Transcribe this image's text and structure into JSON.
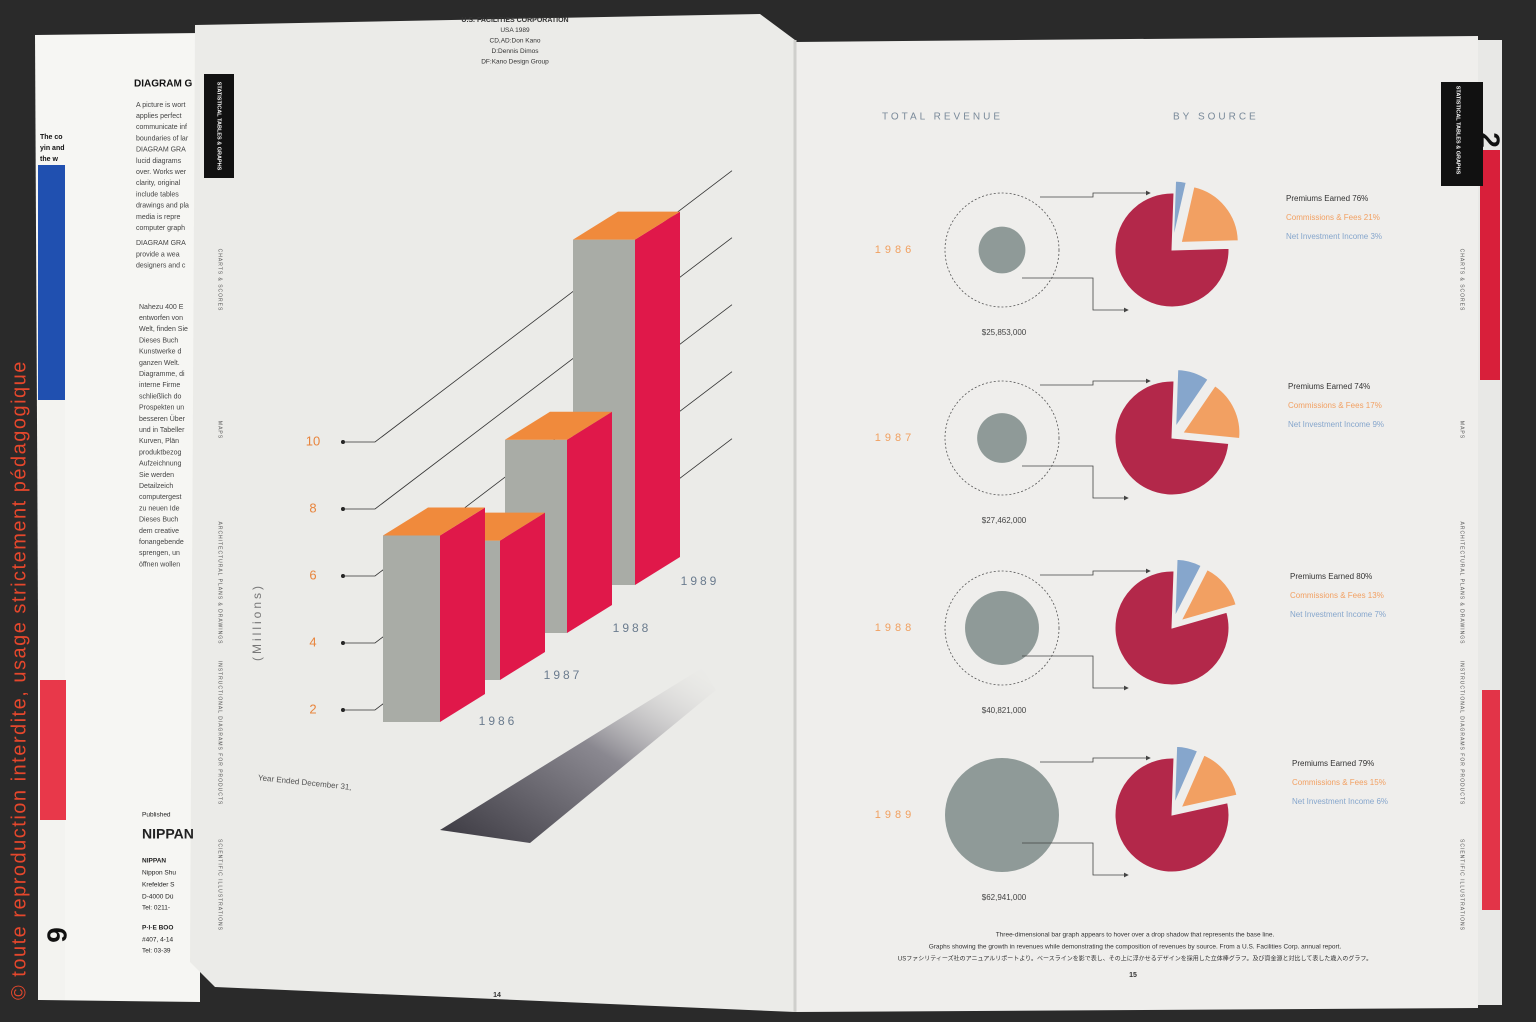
{
  "watermark": "© toute reproduction interdite, usage strictement pédagogique",
  "back_page": {
    "heading": "DIAGRAM G",
    "lines": [
      "A picture is wort",
      "applies perfect",
      "communicate inf",
      "boundaries of lar",
      "DIAGRAM GRA",
      "lucid diagrams",
      "over. Works wer",
      "clarity, original",
      "include tables",
      "drawings and pla",
      "media is repre",
      "computer graph",
      "DIAGRAM GRA",
      "provide a wea",
      "designers and c",
      "Nahezu 400 E",
      "entworfen von",
      "Welt, finden Sie",
      "Dieses Buch",
      "Kunstwerke d",
      "ganzen Welt.",
      "Diagramme, di",
      "interne Firme",
      "schließlich do",
      "Prospekten un",
      "besseren Über",
      "und in Tabeller",
      "Kurven, Plän",
      "produktbezog",
      "Aufzeichnung",
      "Sie werden",
      "Detailzeich",
      "computergest",
      "zu neuen Ide",
      "Dieses Buch",
      "dem creative",
      "fonangebende",
      "sprengen, un",
      "öffnen wollen"
    ],
    "side_lines": [
      "The co",
      "yin and",
      "the w"
    ],
    "footer": [
      "Published",
      "NIPPAN",
      "NIPPAN",
      "Nippon Shu",
      "Krefelder S",
      "D-4000 Dü",
      "Tel: 0211-",
      "P·I·E BOO",
      "#407, 4-14",
      "Tel: 03-39"
    ],
    "page_number": "6"
  },
  "left_page": {
    "credits": [
      "U.S. FACILITIES CORPORATION",
      "USA 1989",
      "CD,AD:Don Kano",
      "D:Dennis Dimos",
      "DF:Kano Design Group"
    ],
    "tab": "STATISTICAL TABLES & GRAPHS",
    "side_sections": [
      "CHARTS & SCORES",
      "MAPS",
      "ARCHITECTURAL PLANS & DRAWINGS",
      "INSTRUCTIONAL DIAGRAMS FOR PRODUCTS",
      "SCIENTIFIC ILLUSTRATIONS"
    ],
    "page_number": "14"
  },
  "bar_chart": {
    "type": "bar",
    "y_label": "(Millions)",
    "x_label": "Year Ended December 31,",
    "categories": [
      "1986",
      "1987",
      "1988",
      "1989"
    ],
    "values": [
      6.4,
      5.1,
      6.8,
      11.4
    ],
    "yticks": [
      2,
      4,
      6,
      8,
      10
    ],
    "colors": {
      "top": "#f08a3c",
      "front": "#a9aca6",
      "side": "#e0184a"
    }
  },
  "right_page": {
    "title_left": "TOTAL REVENUE",
    "title_right": "BY SOURCE",
    "tab": "STATISTICAL TABLES & GRAPHS",
    "tab_number": "2",
    "side_sections": [
      "CHARTS & SCORES",
      "MAPS",
      "ARCHITECTURAL PLANS & DRAWINGS",
      "INSTRUCTIONAL DIAGRAMS FOR PRODUCTS",
      "SCIENTIFIC ILLUSTRATIONS"
    ],
    "colors": [
      "#b3284a",
      "#f2a062",
      "#86a6cc"
    ],
    "total_color": "#8f9a98",
    "pie_charts": [
      {
        "type": "pie",
        "year": "1986",
        "total": {
          "value": 25853000,
          "label": "$25,853,000"
        },
        "values": [
          76,
          21,
          3
        ],
        "value_labels": [
          "Premiums Earned 76%",
          "Commissions & Fees 21%",
          "Net Investment Income 3%"
        ]
      },
      {
        "type": "pie",
        "year": "1987",
        "total": {
          "value": 27462000,
          "label": "$27,462,000"
        },
        "values": [
          74,
          17,
          9
        ],
        "value_labels": [
          "Premiums Earned 74%",
          "Commissions & Fees 17%",
          "Net Investment Income 9%"
        ]
      },
      {
        "type": "pie",
        "year": "1988",
        "total": {
          "value": 40821000,
          "label": "$40,821,000"
        },
        "values": [
          80,
          13,
          7
        ],
        "value_labels": [
          "Premiums Earned 80%",
          "Commissions & Fees 13%",
          "Net Investment Income 7%"
        ]
      },
      {
        "type": "pie",
        "year": "1989",
        "total": {
          "value": 62941000,
          "label": "$62,941,000"
        },
        "values": [
          79,
          15,
          6
        ],
        "value_labels": [
          "Premiums Earned 79%",
          "Commissions & Fees 15%",
          "Net Investment Income 6%"
        ]
      }
    ],
    "caption": [
      "Three-dimensional bar graph appears to hover over a drop shadow that represents the base line.",
      "Graphs showing the growth in revenues while demonstrating the composition of revenues by source. From a U.S. Facilities Corp. annual report.",
      "USファシリティーズ社のアニュアルリポートより。ベースラインを影で表し、その上に浮かせるデザインを採用した立体棒グラフ。及び資金源と対比して表した歳入のグラフ。"
    ],
    "page_number": "15"
  }
}
